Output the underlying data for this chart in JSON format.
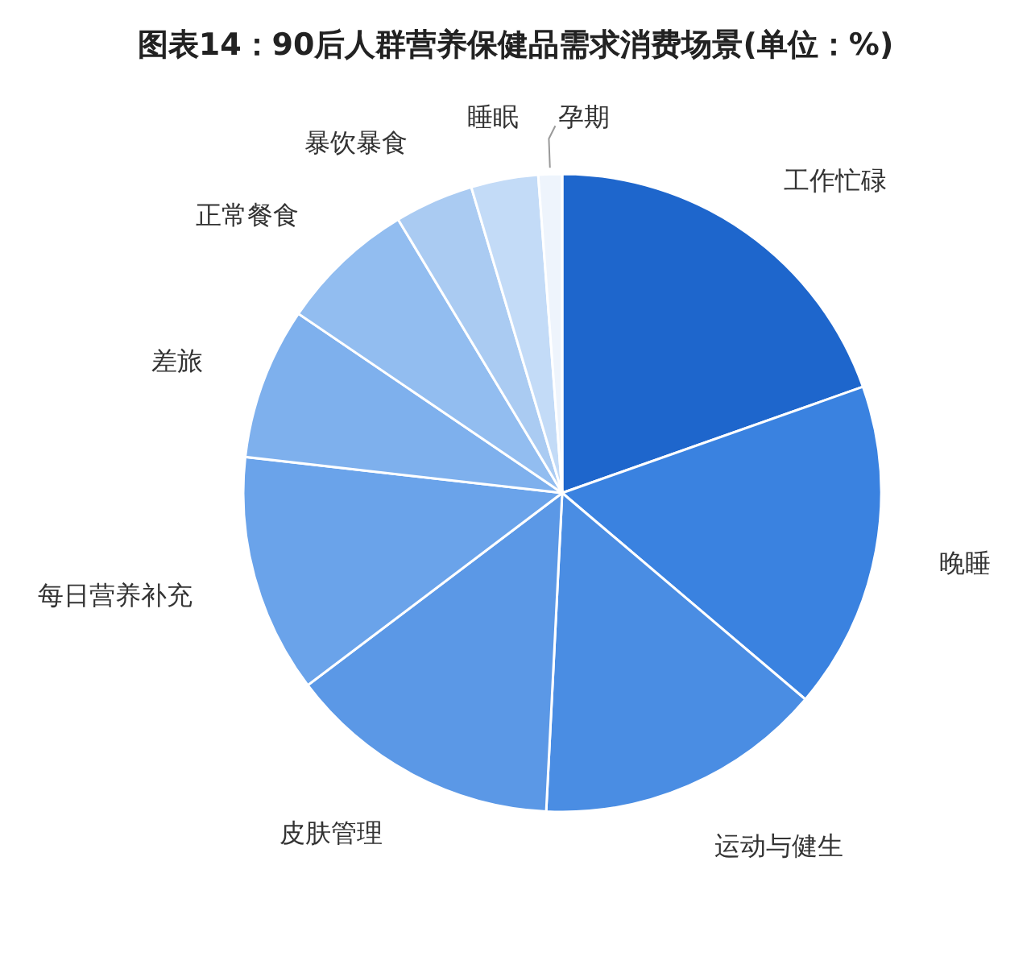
{
  "chart_data": {
    "type": "pie",
    "title": "图表14：90后人群营养保健品需求消费场景(单位：%)",
    "categories": [
      "工作忙碌",
      "晚睡",
      "运动与健生",
      "皮肤管理",
      "每日营养补充",
      "差旅",
      "正常餐食",
      "暴饮暴食",
      "睡眠",
      "孕期"
    ],
    "values": [
      19.6,
      16.6,
      14.6,
      13.9,
      12.1,
      7.7,
      6.9,
      4.0,
      3.4,
      1.2
    ],
    "colors": [
      "#1e66cc",
      "#3a82e0",
      "#4a8de3",
      "#5b98e6",
      "#6aa3ea",
      "#7eb0ed",
      "#92bdf0",
      "#aacbf2",
      "#c3dbf7",
      "#eef4fc"
    ]
  }
}
